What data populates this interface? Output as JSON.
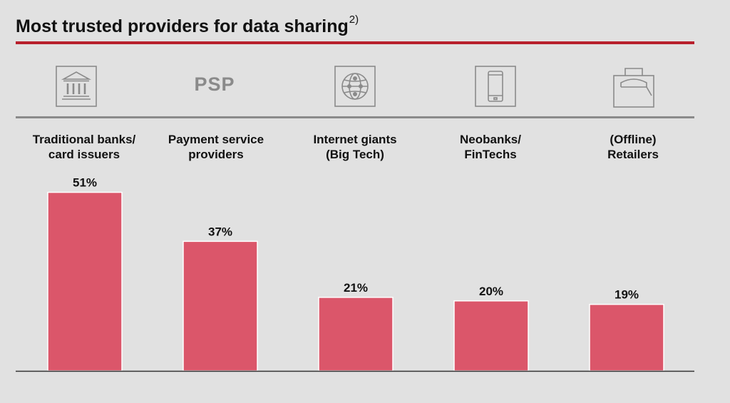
{
  "header": {
    "title": "Most trusted providers for data sharing",
    "footnote_mark": "2)"
  },
  "icons": [
    {
      "name": "bank-icon"
    },
    {
      "name": "psp-icon",
      "text": "PSP"
    },
    {
      "name": "globe-icon"
    },
    {
      "name": "smartphone-icon"
    },
    {
      "name": "shopping-bag-icon"
    }
  ],
  "colors": {
    "bar": "#db566a",
    "accent_rule": "#b8202c",
    "icon_grey": "#8a8a8a",
    "background": "#e1e1e1"
  },
  "chart_data": {
    "type": "bar",
    "categories": [
      [
        "Traditional banks/",
        "card issuers"
      ],
      [
        "Payment service",
        "providers"
      ],
      [
        "Internet giants",
        "(Big Tech)"
      ],
      [
        "Neobanks/",
        "FinTechs"
      ],
      [
        "(Offline)",
        "Retailers"
      ]
    ],
    "values": [
      51,
      37,
      21,
      20,
      19
    ],
    "data_labels": [
      "51%",
      "37%",
      "21%",
      "20%",
      "19%"
    ],
    "unit": "%",
    "ylim": [
      0,
      55
    ],
    "grid": false,
    "legend": "none"
  }
}
